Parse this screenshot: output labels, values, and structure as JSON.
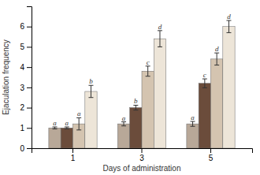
{
  "chart_data": {
    "type": "bar",
    "xlabel": "Days of administration",
    "ylabel": "Ejaculation frequency",
    "categories": [
      "1",
      "3",
      "5"
    ],
    "series": [
      {
        "color": "#b8a898",
        "values": [
          1.0,
          1.2,
          1.2
        ],
        "errors": [
          0.05,
          0.1,
          0.12
        ],
        "letters": [
          "a",
          "a",
          "a"
        ]
      },
      {
        "color": "#6b4c3b",
        "values": [
          1.0,
          2.0,
          3.2
        ],
        "errors": [
          0.05,
          0.12,
          0.22
        ],
        "letters": [
          "a",
          "b",
          "c"
        ]
      },
      {
        "color": "#d4c4b0",
        "values": [
          1.2,
          3.8,
          4.4
        ],
        "errors": [
          0.3,
          0.25,
          0.3
        ],
        "letters": [
          "a",
          "c",
          "d"
        ]
      },
      {
        "color": "#ede5d8",
        "values": [
          2.8,
          5.4,
          6.0
        ],
        "errors": [
          0.3,
          0.4,
          0.3
        ],
        "letters": [
          "b",
          "d",
          "d"
        ]
      }
    ],
    "ylim": [
      0,
      7
    ],
    "yticks": [
      0,
      1,
      2,
      3,
      4,
      5,
      6
    ]
  }
}
